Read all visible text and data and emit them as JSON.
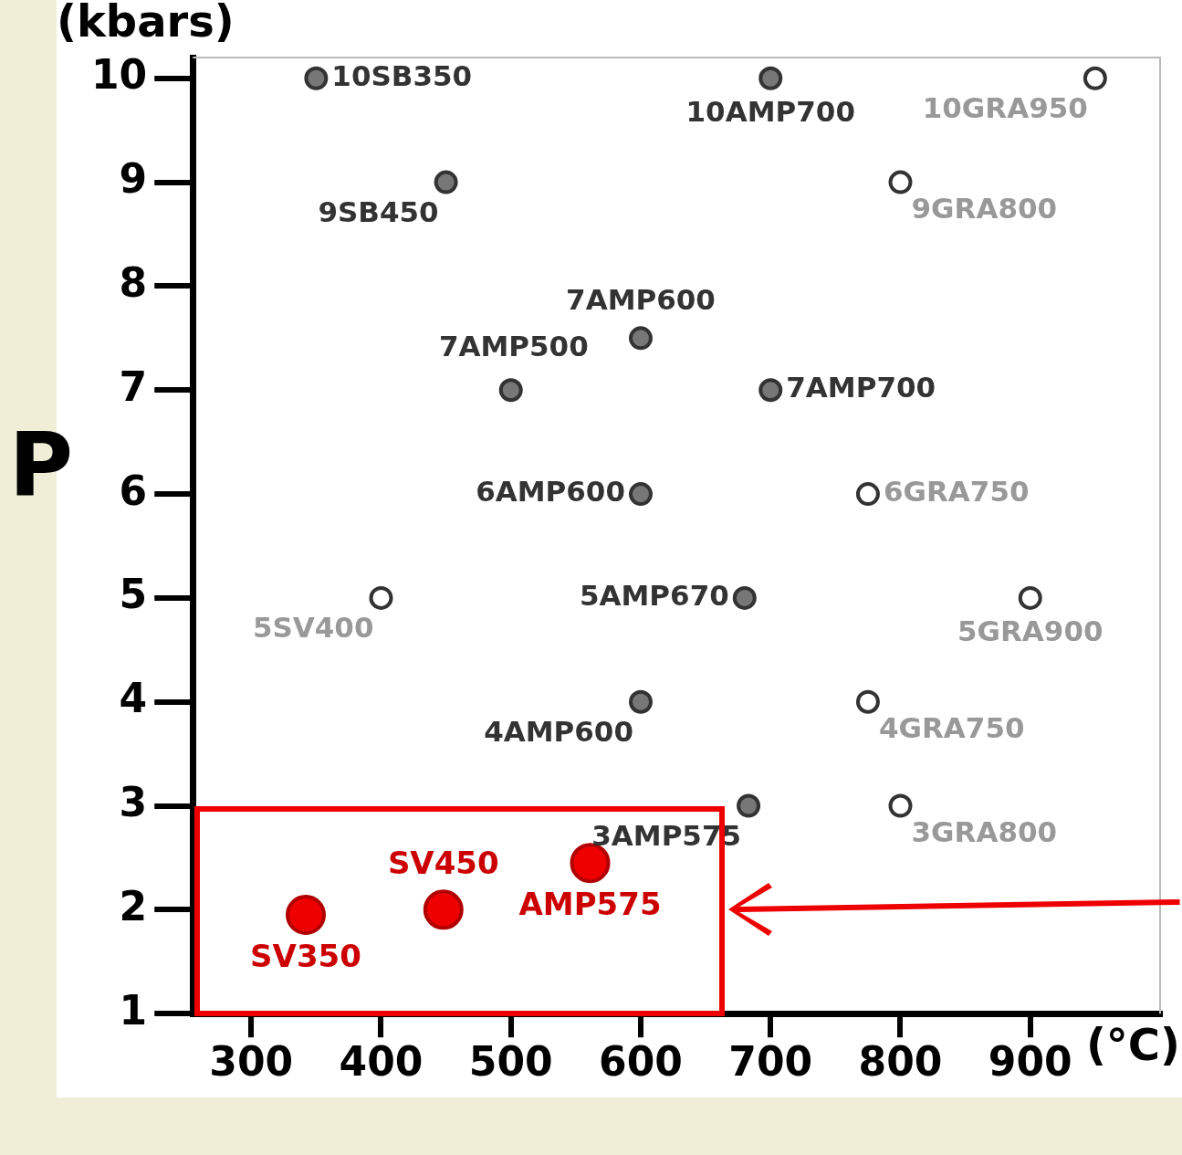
{
  "chart_data": {
    "type": "scatter",
    "ylabel": "P",
    "xlabel": "(°C)",
    "annotations": [
      "(kbars)"
    ],
    "xlim": [
      255,
      1000
    ],
    "xticks": [
      300,
      400,
      500,
      600,
      700,
      800,
      900
    ],
    "ylim": [
      1,
      10.2
    ],
    "yticks": [
      1,
      2,
      3,
      4,
      5,
      6,
      7,
      8,
      9,
      10
    ],
    "grid": false,
    "legend": false,
    "marker": "circle",
    "series": [
      {
        "color": "#777777",
        "x": [
          350,
          700,
          450,
          600,
          500,
          700,
          600,
          680,
          600,
          683
        ],
        "values": [
          10,
          10,
          9,
          7.5,
          7,
          7,
          6,
          5,
          4,
          3
        ],
        "value_labels": [
          "10SB350",
          "10AMP700",
          "9SB450",
          "7AMP600",
          "7AMP500",
          "7AMP700",
          "6AMP600",
          "5AMP670",
          "4AMP600",
          "3AMP575"
        ]
      },
      {
        "color": "#ffffff",
        "x": [
          950,
          800,
          775,
          400,
          900,
          775,
          800
        ],
        "values": [
          10,
          9,
          6,
          5,
          5,
          4,
          3
        ],
        "value_labels": [
          "10GRA950",
          "9GRA800",
          "6GRA750",
          "5SV400",
          "5GRA900",
          "4GRA750",
          "3GRA800"
        ]
      },
      {
        "color": "#ee0000",
        "x": [
          342,
          448,
          561
        ],
        "values": [
          1.95,
          2,
          2.45
        ],
        "value_labels": [
          "SV350",
          "SV450",
          "AMP575"
        ]
      }
    ]
  }
}
